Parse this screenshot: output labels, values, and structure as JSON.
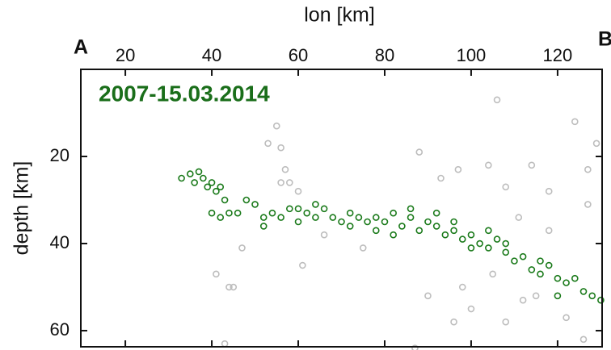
{
  "chart_data": {
    "type": "scatter",
    "xlabel": "lon [km]",
    "ylabel": "depth [km]",
    "label_left": "A",
    "label_right": "B",
    "annotation": "2007-15.03.2014",
    "annotation_color": "#1a6e1a",
    "xlim": [
      9.7,
      130.3
    ],
    "ylim": [
      0,
      63.7
    ],
    "y_inverted": true,
    "xticks": [
      20,
      40,
      60,
      80,
      100,
      120
    ],
    "yticks": [
      20,
      40,
      60
    ],
    "series": [
      {
        "color": "#bdbdbd",
        "x": [
          55,
          56,
          53,
          57,
          58,
          60,
          56,
          47,
          41,
          44,
          45,
          61,
          66,
          88,
          93,
          97,
          104,
          108,
          114,
          118,
          124,
          127,
          129,
          112,
          105,
          100,
          96,
          90,
          87,
          98,
          108,
          115,
          122,
          126,
          43,
          127,
          106,
          118,
          111,
          75
        ],
        "y": [
          13,
          18,
          17,
          23,
          26,
          28,
          26,
          41,
          47,
          50,
          50,
          45,
          38,
          19,
          25,
          23,
          22,
          27,
          22,
          28,
          12,
          31,
          17,
          53,
          47,
          55,
          58,
          52,
          64,
          50,
          58,
          52,
          57,
          62,
          63,
          23,
          7,
          37,
          34,
          41
        ]
      },
      {
        "color": "#1a7a1a",
        "x": [
          33,
          35,
          36,
          37,
          38,
          39,
          40,
          41,
          42,
          43,
          40,
          42,
          44,
          46,
          48,
          50,
          52,
          54,
          56,
          58,
          60,
          62,
          64,
          66,
          68,
          70,
          72,
          74,
          76,
          78,
          80,
          82,
          84,
          86,
          88,
          90,
          92,
          94,
          96,
          98,
          100,
          102,
          104,
          106,
          108,
          110,
          112,
          114,
          116,
          118,
          120,
          122,
          124,
          126,
          128,
          130,
          72,
          78,
          86,
          92,
          96,
          100,
          104,
          60,
          52,
          64,
          82,
          108,
          116,
          120
        ],
        "y": [
          25,
          24,
          26,
          23.5,
          25,
          27,
          26,
          28,
          27,
          30,
          33,
          34,
          33,
          33,
          30,
          31,
          34,
          33,
          34,
          32,
          32,
          33,
          34,
          32,
          34,
          35,
          33,
          34,
          35,
          34,
          35,
          33,
          36,
          34,
          37,
          35,
          36,
          38,
          37,
          39,
          38,
          40,
          41,
          39,
          42,
          44,
          43,
          46,
          47,
          45,
          48,
          49,
          48,
          51,
          52,
          53,
          36,
          37,
          32,
          33,
          35,
          41,
          37,
          35,
          36,
          31,
          38,
          40,
          44,
          52
        ]
      }
    ]
  }
}
